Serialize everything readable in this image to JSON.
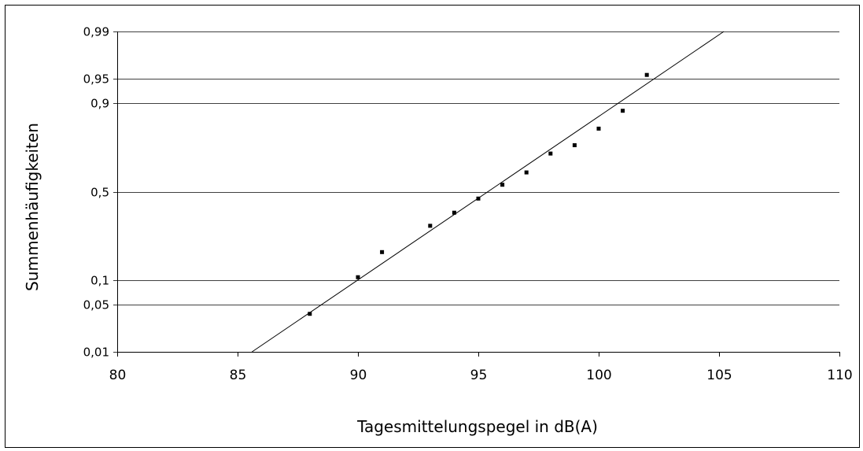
{
  "chart_data": {
    "type": "scatter",
    "title": "",
    "xlabel": "Tagesmittelungspegel in dB(A)",
    "ylabel": "Summenhäufigkeiten",
    "xlim": [
      80,
      110
    ],
    "xticks": [
      80,
      85,
      90,
      95,
      100,
      105,
      110
    ],
    "xtick_labels": [
      "80",
      "85",
      "90",
      "95",
      "100",
      "105",
      "110"
    ],
    "yscale": "probability",
    "ylim": [
      0.01,
      0.99
    ],
    "yticks": [
      0.01,
      0.05,
      0.1,
      0.5,
      0.9,
      0.95,
      0.99
    ],
    "ytick_labels": [
      "0,01",
      "0,05",
      "0,1",
      "0,5",
      "0,9",
      "0,95",
      "0,99"
    ],
    "grid": "horizontal",
    "legend": "none",
    "series": [
      {
        "x": [
          88,
          90,
          91,
          93,
          94,
          95,
          96,
          97,
          98,
          99,
          100,
          101,
          102
        ],
        "y": [
          0.038,
          0.107,
          0.19,
          0.31,
          0.38,
          0.46,
          0.54,
          0.61,
          0.71,
          0.75,
          0.82,
          0.88,
          0.955
        ]
      }
    ],
    "trend_line": {
      "x": [
        85.6,
        105.2
      ],
      "y": [
        0.01,
        0.99
      ]
    },
    "colors": {
      "marker": "#000000",
      "line": "#000000",
      "grid": "#000000"
    }
  }
}
